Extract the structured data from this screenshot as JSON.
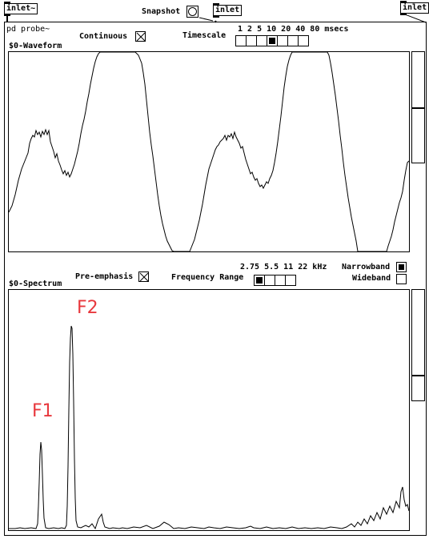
{
  "inlets": {
    "left": "inlet~",
    "center": "inlet",
    "right": "inlet"
  },
  "header": {
    "subpatch_title": "pd probe~",
    "snapshot_label": "Snapshot"
  },
  "waveform": {
    "label": "$0-Waveform",
    "continuous_label": "Continuous",
    "continuous_checked": true,
    "timescale_label": "Timescale",
    "timescale_values": "1 2 5 10 20 40 80 msecs",
    "timescale_options": [
      "1",
      "2",
      "5",
      "10",
      "20",
      "40",
      "80"
    ],
    "timescale_selected": 3,
    "slider_level": 0.49
  },
  "spectrum": {
    "label": "$0-Spectrum",
    "preemphasis_label": "Pre-emphasis",
    "preemphasis_checked": true,
    "frequency_range_label": "Frequency Range",
    "frequency_range_values": "2.75 5.5 11 22 kHz",
    "frequency_range_options": [
      "2.75",
      "5.5",
      "11",
      "22"
    ],
    "frequency_range_selected": 0,
    "narrowband_label": "Narrowband",
    "narrowband_checked": true,
    "wideband_label": "Wideband",
    "wideband_checked": false,
    "slider_level": 0.22
  },
  "annotations": {
    "f1": "F1",
    "f2": "F2",
    "color": "#e8383d"
  }
}
